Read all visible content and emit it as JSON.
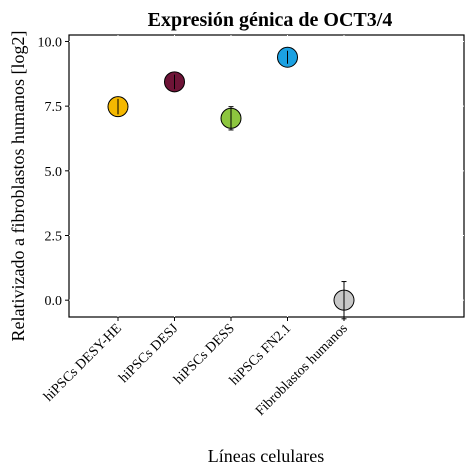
{
  "chart_data": {
    "type": "scatter",
    "title": "Expresión génica de OCT3/4",
    "xlabel": "Líneas celulares",
    "ylabel": "Relativizado a fibroblastos humanos [log2]",
    "ylim": [
      -0.65,
      10.25
    ],
    "yticks": [
      0.0,
      2.5,
      5.0,
      7.5,
      10.0
    ],
    "ytick_labels": [
      "0.0",
      "2.5",
      "5.0",
      "7.5",
      "10.0"
    ],
    "categories": [
      "hiPSCs DESY-HE",
      "hiPSCs DESJ",
      "hiPSCs DESS",
      "hiPSCs FN2.1",
      "Fibroblastos humanos"
    ],
    "values": [
      7.48,
      8.44,
      7.03,
      9.39,
      0.0
    ],
    "errors": [
      0.3,
      0.28,
      0.45,
      0.25,
      0.72
    ],
    "colors": [
      "#F5B800",
      "#6E1437",
      "#8DC63F",
      "#1BA1E2",
      "#C8C8C8"
    ],
    "grid": true,
    "legend": "none"
  }
}
